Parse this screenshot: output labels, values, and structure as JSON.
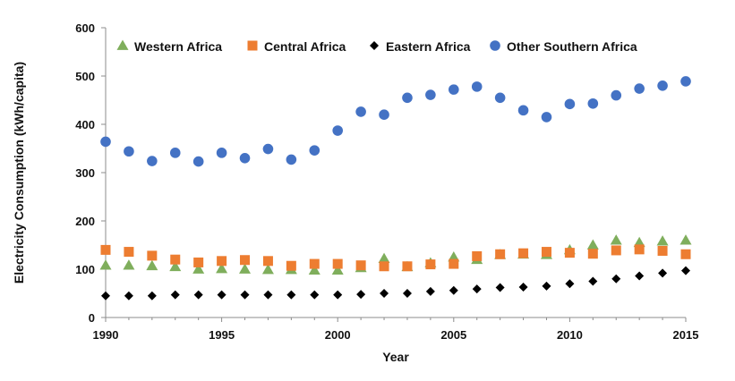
{
  "chart_data": {
    "type": "scatter",
    "xlabel": "Year",
    "ylabel": "Electricity Consumption  (kWh/capita)",
    "xlim": [
      1990,
      2015
    ],
    "ylim": [
      0,
      600
    ],
    "xticks": [
      1990,
      1995,
      2000,
      2005,
      2010,
      2015
    ],
    "yticks": [
      0,
      100,
      200,
      300,
      400,
      500,
      600
    ],
    "grid": false,
    "legend_position": "top",
    "x": [
      1990,
      1991,
      1992,
      1993,
      1994,
      1995,
      1996,
      1997,
      1998,
      1999,
      2000,
      2001,
      2002,
      2003,
      2004,
      2005,
      2006,
      2007,
      2008,
      2009,
      2010,
      2011,
      2012,
      2013,
      2014,
      2015
    ],
    "series": [
      {
        "name": "Western Africa",
        "marker": "triangle",
        "color": "#7fae5c",
        "values": [
          108,
          108,
          107,
          105,
          100,
          101,
          100,
          99,
          99,
          98,
          98,
          103,
          122,
          105,
          113,
          125,
          120,
          130,
          131,
          130,
          140,
          150,
          160,
          155,
          158,
          160
        ]
      },
      {
        "name": "Central Africa",
        "marker": "square",
        "color": "#ed7d31",
        "values": [
          140,
          136,
          128,
          120,
          114,
          117,
          119,
          117,
          107,
          111,
          111,
          108,
          106,
          106,
          110,
          111,
          127,
          131,
          133,
          136,
          134,
          132,
          139,
          141,
          138,
          131
        ]
      },
      {
        "name": "Eastern Africa",
        "marker": "diamond",
        "color": "#000000",
        "values": [
          45,
          45,
          45,
          47,
          47,
          47,
          47,
          47,
          47,
          47,
          47,
          48,
          50,
          50,
          54,
          56,
          59,
          62,
          63,
          65,
          70,
          75,
          80,
          86,
          92,
          97
        ]
      },
      {
        "name": "Other Southern Africa",
        "marker": "circle",
        "color": "#4472c4",
        "values": [
          364,
          344,
          324,
          341,
          323,
          341,
          330,
          349,
          327,
          346,
          387,
          426,
          420,
          455,
          461,
          472,
          478,
          455,
          429,
          415,
          442,
          443,
          460,
          474,
          480,
          489
        ]
      }
    ]
  }
}
